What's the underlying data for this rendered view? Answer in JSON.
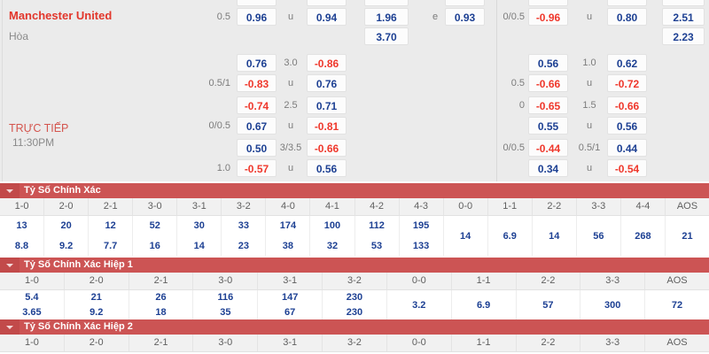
{
  "colors": {
    "odds_blue": "#1d4093",
    "odds_red": "#ef382c",
    "bar_red": "#cc5454",
    "team_red": "#e2372c"
  },
  "header": {
    "team": "Manchester United",
    "draw": "Hòa",
    "live": "TRỰC TIẾP",
    "time": "11:30PM"
  },
  "odds_grid": {
    "rows": [
      {
        "cells": [
          {
            "slot": "hdp1",
            "text": "0.5"
          },
          {
            "slot": "box1",
            "text": "0.96",
            "color": "blue"
          },
          {
            "slot": "lbl2",
            "text": "u"
          },
          {
            "slot": "box2",
            "text": "0.94",
            "color": "blue"
          },
          {
            "slot": "x12",
            "text": "1.96",
            "color": "blue"
          },
          {
            "slot": "lbl3",
            "text": "e"
          },
          {
            "slot": "box3",
            "text": "0.93",
            "color": "blue"
          },
          {
            "slot": "hdp2",
            "text": "0/0.5"
          },
          {
            "slot": "box4",
            "text": "-0.96",
            "color": "red"
          },
          {
            "slot": "lbl5",
            "text": "u"
          },
          {
            "slot": "box5",
            "text": "0.80",
            "color": "blue"
          },
          {
            "slot": "fin",
            "text": "2.51",
            "color": "blue"
          }
        ]
      },
      {
        "cells": [
          {
            "slot": "x12",
            "text": "3.70",
            "color": "blue"
          },
          {
            "slot": "fin",
            "text": "2.23",
            "color": "blue"
          }
        ]
      },
      {
        "cells": [
          {
            "slot": "box1",
            "text": "0.76",
            "color": "blue"
          },
          {
            "slot": "lbl2",
            "text": "3.0"
          },
          {
            "slot": "box2",
            "text": "-0.86",
            "color": "red"
          },
          {
            "slot": "box4",
            "text": "0.56",
            "color": "blue"
          },
          {
            "slot": "lbl5",
            "text": "1.0"
          },
          {
            "slot": "box5",
            "text": "0.62",
            "color": "blue"
          }
        ]
      },
      {
        "cells": [
          {
            "slot": "hdp1",
            "text": "0.5/1"
          },
          {
            "slot": "box1",
            "text": "-0.83",
            "color": "red"
          },
          {
            "slot": "lbl2",
            "text": "u"
          },
          {
            "slot": "box2",
            "text": "0.76",
            "color": "blue"
          },
          {
            "slot": "hdp2",
            "text": "0.5"
          },
          {
            "slot": "box4",
            "text": "-0.66",
            "color": "red"
          },
          {
            "slot": "lbl5",
            "text": "u"
          },
          {
            "slot": "box5",
            "text": "-0.72",
            "color": "red"
          }
        ]
      },
      {
        "cells": [
          {
            "slot": "box1",
            "text": "-0.74",
            "color": "red"
          },
          {
            "slot": "lbl2",
            "text": "2.5"
          },
          {
            "slot": "box2",
            "text": "0.71",
            "color": "blue"
          },
          {
            "slot": "hdp2",
            "text": "0"
          },
          {
            "slot": "box4",
            "text": "-0.65",
            "color": "red"
          },
          {
            "slot": "lbl5",
            "text": "1.5"
          },
          {
            "slot": "box5",
            "text": "-0.66",
            "color": "red"
          }
        ]
      },
      {
        "cells": [
          {
            "slot": "hdp1",
            "text": "0/0.5"
          },
          {
            "slot": "box1",
            "text": "0.67",
            "color": "blue"
          },
          {
            "slot": "lbl2",
            "text": "u"
          },
          {
            "slot": "box2",
            "text": "-0.81",
            "color": "red"
          },
          {
            "slot": "box4",
            "text": "0.55",
            "color": "blue"
          },
          {
            "slot": "lbl5",
            "text": "u"
          },
          {
            "slot": "box5",
            "text": "0.56",
            "color": "blue"
          }
        ]
      },
      {
        "cells": [
          {
            "slot": "box1",
            "text": "0.50",
            "color": "blue"
          },
          {
            "slot": "lbl2",
            "text": "3/3.5"
          },
          {
            "slot": "box2",
            "text": "-0.66",
            "color": "red"
          },
          {
            "slot": "hdp2",
            "text": "0/0.5"
          },
          {
            "slot": "box4",
            "text": "-0.44",
            "color": "red"
          },
          {
            "slot": "lbl5",
            "text": "0.5/1"
          },
          {
            "slot": "box5",
            "text": "0.44",
            "color": "blue"
          }
        ]
      },
      {
        "cells": [
          {
            "slot": "hdp1",
            "text": "1.0"
          },
          {
            "slot": "box1",
            "text": "-0.57",
            "color": "red"
          },
          {
            "slot": "lbl2",
            "text": "u"
          },
          {
            "slot": "box2",
            "text": "0.56",
            "color": "blue"
          },
          {
            "slot": "box4",
            "text": "0.34",
            "color": "blue"
          },
          {
            "slot": "lbl5",
            "text": "u"
          },
          {
            "slot": "box5",
            "text": "-0.54",
            "color": "red"
          }
        ]
      }
    ]
  },
  "score_sections": [
    {
      "title": "Tỷ Số Chính Xác",
      "columns": [
        "1-0",
        "2-0",
        "2-1",
        "3-0",
        "3-1",
        "3-2",
        "4-0",
        "4-1",
        "4-2",
        "4-3",
        "0-0",
        "1-1",
        "2-2",
        "3-3",
        "4-4",
        "AOS"
      ],
      "odds": [
        [
          "13",
          "8.8"
        ],
        [
          "20",
          "9.2"
        ],
        [
          "12",
          "7.7"
        ],
        [
          "52",
          "16"
        ],
        [
          "30",
          "14"
        ],
        [
          "33",
          "23"
        ],
        [
          "174",
          "38"
        ],
        [
          "100",
          "32"
        ],
        [
          "112",
          "53"
        ],
        [
          "195",
          "133"
        ],
        [
          "14"
        ],
        [
          "6.9"
        ],
        [
          "14"
        ],
        [
          "56"
        ],
        [
          "268"
        ],
        [
          "21"
        ]
      ]
    },
    {
      "title": "Tỷ Số Chính Xác Hiệp 1",
      "columns": [
        "1-0",
        "2-0",
        "2-1",
        "3-0",
        "3-1",
        "3-2",
        "0-0",
        "1-1",
        "2-2",
        "3-3",
        "AOS"
      ],
      "odds": [
        [
          "5.4",
          "3.65"
        ],
        [
          "21",
          "9.2"
        ],
        [
          "26",
          "18"
        ],
        [
          "116",
          "35"
        ],
        [
          "147",
          "67"
        ],
        [
          "230",
          "230"
        ],
        [
          "3.2"
        ],
        [
          "6.9"
        ],
        [
          "57"
        ],
        [
          "300"
        ],
        [
          "72"
        ]
      ]
    },
    {
      "title": "Tỷ Số Chính Xác Hiệp 2",
      "columns": [
        "1-0",
        "2-0",
        "2-1",
        "3-0",
        "3-1",
        "3-2",
        "0-0",
        "1-1",
        "2-2",
        "3-3",
        "AOS"
      ],
      "odds": []
    }
  ]
}
